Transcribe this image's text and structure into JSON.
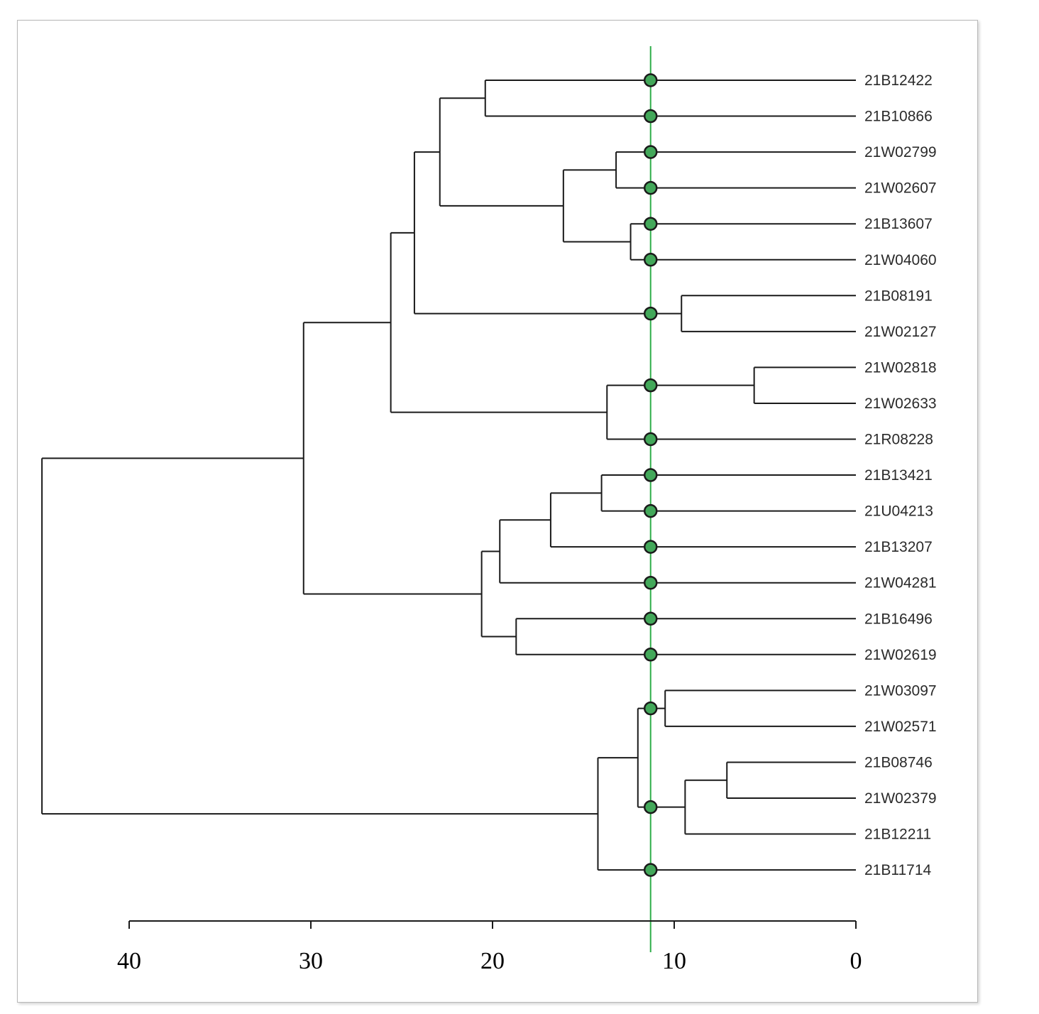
{
  "diagram": {
    "type": "dendrogram",
    "orientation": "leaves-right",
    "axis": {
      "ticks": [
        40,
        30,
        20,
        10,
        0
      ],
      "range": [
        40,
        0
      ]
    },
    "cut_line": {
      "value": 11.3,
      "color": "#2fae4a"
    },
    "marker_color": "#43a85a",
    "leaves": [
      "21B12422",
      "21B10866",
      "21W02799",
      "21W02607",
      "21B13607",
      "21W04060",
      "21B08191",
      "21W02127",
      "21W02818",
      "21W02633",
      "21R08228",
      "21B13421",
      "21U04213",
      "21B13207",
      "21W04281",
      "21B16496",
      "21W02619",
      "21W03097",
      "21W02571",
      "21B08746",
      "21W02379",
      "21B12211",
      "21B11714"
    ],
    "merges": [
      {
        "id": "m1",
        "height": 20.4,
        "children": [
          "L0",
          "L1"
        ]
      },
      {
        "id": "m2",
        "height": 13.2,
        "children": [
          "L2",
          "L3"
        ]
      },
      {
        "id": "m3",
        "height": 12.4,
        "children": [
          "L4",
          "L5"
        ]
      },
      {
        "id": "m4",
        "height": 16.1,
        "children": [
          "m2",
          "m3"
        ]
      },
      {
        "id": "m5",
        "height": 22.9,
        "children": [
          "m1",
          "m4"
        ]
      },
      {
        "id": "m6",
        "height": 9.6,
        "children": [
          "L6",
          "L7"
        ]
      },
      {
        "id": "m7",
        "height": 24.3,
        "children": [
          "m5",
          "m6"
        ]
      },
      {
        "id": "m8",
        "height": 5.6,
        "children": [
          "L8",
          "L9"
        ]
      },
      {
        "id": "m9",
        "height": 13.7,
        "children": [
          "m8",
          "L10"
        ]
      },
      {
        "id": "m10",
        "height": 25.6,
        "children": [
          "m7",
          "m9"
        ]
      },
      {
        "id": "m11",
        "height": 14.0,
        "children": [
          "L11",
          "L12"
        ]
      },
      {
        "id": "m12",
        "height": 16.8,
        "children": [
          "m11",
          "L13"
        ]
      },
      {
        "id": "m13",
        "height": 19.6,
        "children": [
          "m12",
          "L14"
        ]
      },
      {
        "id": "m14",
        "height": 18.7,
        "children": [
          "L15",
          "L16"
        ]
      },
      {
        "id": "m15",
        "height": 20.6,
        "children": [
          "m13",
          "m14"
        ]
      },
      {
        "id": "m16",
        "height": 30.4,
        "children": [
          "m10",
          "m15"
        ]
      },
      {
        "id": "m17",
        "height": 10.5,
        "children": [
          "L17",
          "L18"
        ]
      },
      {
        "id": "m18",
        "height": 7.1,
        "children": [
          "L19",
          "L20"
        ]
      },
      {
        "id": "m19",
        "height": 9.4,
        "children": [
          "m18",
          "L21"
        ]
      },
      {
        "id": "m20",
        "height": 12.0,
        "children": [
          "m17",
          "m19"
        ]
      },
      {
        "id": "m21",
        "height": 14.2,
        "children": [
          "m20",
          "L22"
        ]
      },
      {
        "id": "m22",
        "height": 44.8,
        "children": [
          "m16",
          "m21"
        ]
      }
    ],
    "markers_on": [
      "L0",
      "L1",
      "L2",
      "L3",
      "L4",
      "L5",
      "m6",
      "m8",
      "L10",
      "L11",
      "L12",
      "L13",
      "L14",
      "L15",
      "L16",
      "m17",
      "m19",
      "L22"
    ]
  }
}
